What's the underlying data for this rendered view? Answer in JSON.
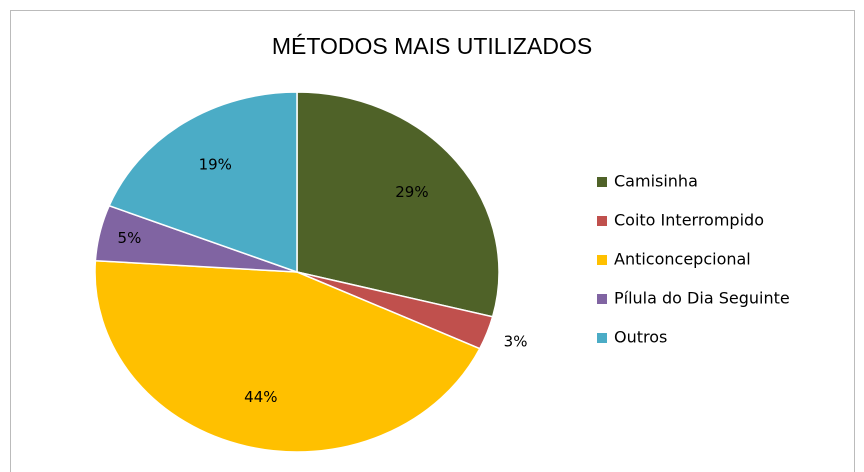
{
  "chart_data": {
    "type": "pie",
    "title": "MÉTODOS MAIS UTILIZADOS",
    "categories": [
      "Camisinha",
      "Coito Interrompido",
      "Anticoncepcional",
      "Pílula do Dia Seguinte",
      "Outros"
    ],
    "values": [
      29,
      3,
      44,
      5,
      19
    ],
    "value_labels": [
      "29%",
      "3%",
      "44%",
      "5%",
      "19%"
    ],
    "colors": [
      "#4f6228",
      "#c0504d",
      "#ffc000",
      "#8064a2",
      "#4bacc6"
    ],
    "legend": "right"
  }
}
